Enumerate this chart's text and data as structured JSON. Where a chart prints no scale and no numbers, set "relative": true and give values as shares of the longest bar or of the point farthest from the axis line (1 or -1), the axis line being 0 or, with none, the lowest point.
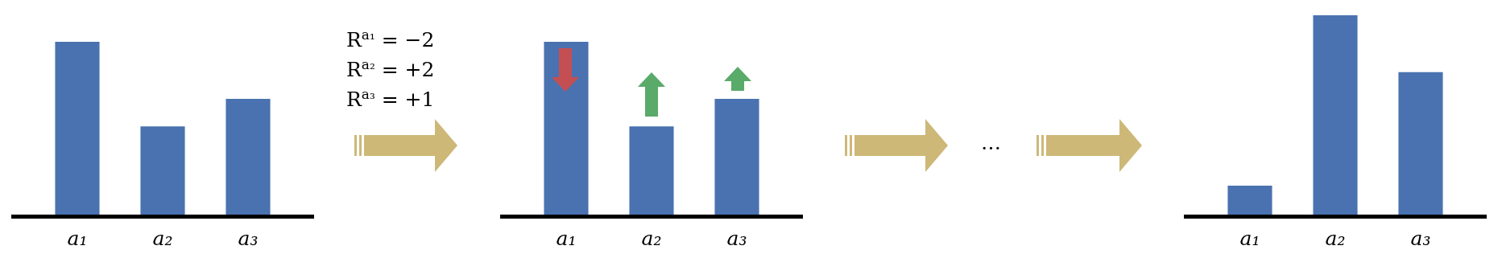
{
  "chart_data": [
    {
      "type": "bar",
      "categories": [
        "a₁",
        "a₂",
        "a₃"
      ],
      "values": [
        1,
        0.51,
        0.67
      ],
      "color": "#4a72b0",
      "relative": true
    },
    {
      "type": "bar",
      "categories": [
        "a₁",
        "a₂",
        "a₃"
      ],
      "values": [
        1,
        0.51,
        0.67
      ],
      "color": "#4a72b0",
      "relative": true,
      "annotations": [
        "R$^{a₁}$ = −2",
        "R$^{a₂}$ = +2",
        "R$^{a₃}$ = +1"
      ]
    },
    {
      "type": "bar",
      "categories": [
        "a₁",
        "a₂",
        "a₃"
      ],
      "values": [
        0.145,
        1,
        0.715
      ],
      "color": "#4a72b0",
      "relative": true,
      "annotations": [
        "…"
      ]
    }
  ]
}
